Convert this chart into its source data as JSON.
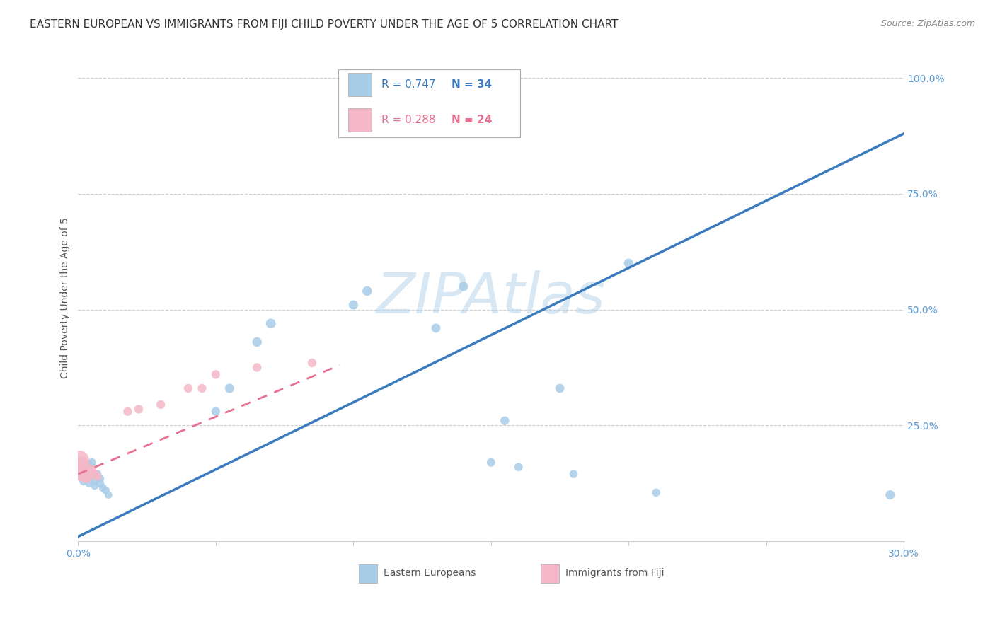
{
  "title": "EASTERN EUROPEAN VS IMMIGRANTS FROM FIJI CHILD POVERTY UNDER THE AGE OF 5 CORRELATION CHART",
  "source": "Source: ZipAtlas.com",
  "ylabel": "Child Poverty Under the Age of 5",
  "watermark": "ZIPAtlas",
  "xlim": [
    0.0,
    0.3
  ],
  "ylim": [
    0.0,
    1.05
  ],
  "xticks": [
    0.0,
    0.05,
    0.1,
    0.15,
    0.2,
    0.25,
    0.3
  ],
  "xticklabels": [
    "0.0%",
    "",
    "",
    "",
    "",
    "",
    "30.0%"
  ],
  "yticks_right": [
    0.25,
    0.5,
    0.75,
    1.0
  ],
  "yticklabels_right": [
    "25.0%",
    "50.0%",
    "75.0%",
    "100.0%"
  ],
  "blue_color": "#a8cde8",
  "pink_color": "#f4b8c8",
  "blue_line_color": "#3a7bbf",
  "pink_line_color": "#e87090",
  "legend_R1": "R = 0.747",
  "legend_N1": "N = 34",
  "legend_R2": "R = 0.288",
  "legend_N2": "N = 24",
  "legend_label1": "Eastern Europeans",
  "legend_label2": "Immigrants from Fiji",
  "grid_color": "#cccccc",
  "blue_x": [
    0.001,
    0.001,
    0.002,
    0.002,
    0.003,
    0.003,
    0.004,
    0.004,
    0.005,
    0.005,
    0.006,
    0.006,
    0.007,
    0.008,
    0.008,
    0.009,
    0.01,
    0.011,
    0.05,
    0.055,
    0.065,
    0.07,
    0.1,
    0.105,
    0.13,
    0.14,
    0.155,
    0.175,
    0.2,
    0.15,
    0.16,
    0.18,
    0.21,
    0.295
  ],
  "blue_y": [
    0.155,
    0.145,
    0.16,
    0.13,
    0.15,
    0.135,
    0.165,
    0.125,
    0.17,
    0.14,
    0.12,
    0.13,
    0.145,
    0.135,
    0.125,
    0.115,
    0.11,
    0.1,
    0.28,
    0.33,
    0.43,
    0.47,
    0.51,
    0.54,
    0.46,
    0.55,
    0.26,
    0.33,
    0.6,
    0.17,
    0.16,
    0.145,
    0.105,
    0.1
  ],
  "blue_sizes": [
    120,
    100,
    90,
    80,
    75,
    70,
    70,
    65,
    75,
    70,
    65,
    65,
    70,
    65,
    65,
    65,
    65,
    60,
    80,
    90,
    95,
    100,
    90,
    95,
    85,
    90,
    80,
    85,
    90,
    75,
    70,
    70,
    70,
    90
  ],
  "pink_x": [
    0.0005,
    0.001,
    0.001,
    0.001,
    0.002,
    0.002,
    0.002,
    0.002,
    0.003,
    0.003,
    0.003,
    0.004,
    0.004,
    0.005,
    0.006,
    0.007,
    0.018,
    0.022,
    0.03,
    0.04,
    0.045,
    0.05,
    0.065,
    0.085
  ],
  "pink_y": [
    0.175,
    0.165,
    0.155,
    0.145,
    0.165,
    0.15,
    0.14,
    0.16,
    0.155,
    0.145,
    0.135,
    0.15,
    0.14,
    0.155,
    0.145,
    0.14,
    0.28,
    0.285,
    0.295,
    0.33,
    0.33,
    0.36,
    0.375,
    0.385
  ],
  "pink_sizes": [
    380,
    280,
    220,
    180,
    160,
    140,
    130,
    120,
    110,
    100,
    90,
    90,
    85,
    85,
    80,
    75,
    80,
    80,
    80,
    80,
    80,
    80,
    80,
    80
  ],
  "blue_line_x": [
    0.0,
    0.3
  ],
  "blue_line_y": [
    0.01,
    0.88
  ],
  "pink_line_x": [
    0.0,
    0.095
  ],
  "pink_line_y": [
    0.145,
    0.38
  ],
  "bg_color": "#ffffff",
  "title_fontsize": 11,
  "label_fontsize": 10,
  "tick_fontsize": 10,
  "tick_color": "#5b9bd5",
  "right_tick_color": "#5b9bd5"
}
